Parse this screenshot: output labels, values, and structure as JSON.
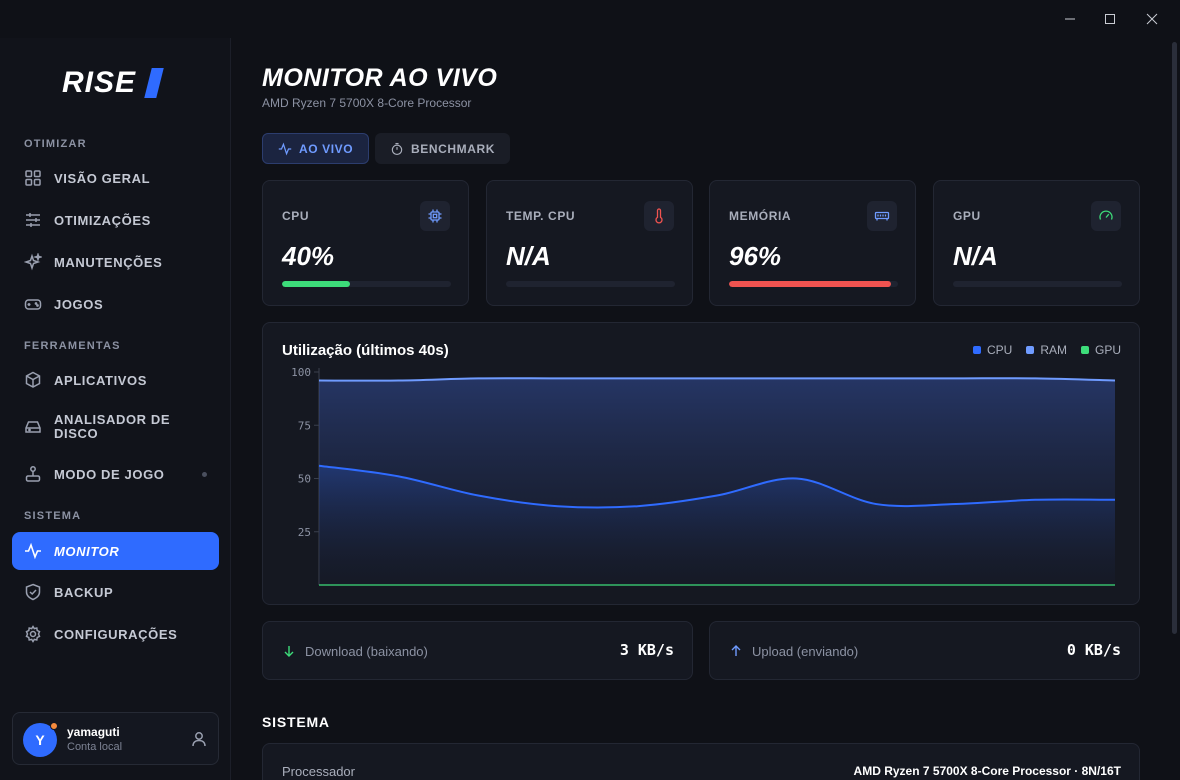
{
  "window": {
    "minimize": "minimize",
    "maximize": "maximize",
    "close": "close"
  },
  "brand": {
    "name": "RISE"
  },
  "sidebar": {
    "sections": [
      {
        "label": "OTIMIZAR"
      },
      {
        "label": "FERRAMENTAS"
      },
      {
        "label": "SISTEMA"
      }
    ],
    "items": [
      {
        "label": "VISÃO GERAL",
        "icon": "grid-icon"
      },
      {
        "label": "OTIMIZAÇÕES",
        "icon": "sliders-icon"
      },
      {
        "label": "MANUTENÇÕES",
        "icon": "sparkles-icon"
      },
      {
        "label": "JOGOS",
        "icon": "gamepad-icon"
      },
      {
        "label": "APLICATIVOS",
        "icon": "package-icon"
      },
      {
        "label": "ANALISADOR DE DISCO",
        "icon": "hard-drive-icon"
      },
      {
        "label": "MODO DE JOGO",
        "icon": "joystick-icon"
      },
      {
        "label": "MONITOR",
        "icon": "activity-icon",
        "active": true
      },
      {
        "label": "BACKUP",
        "icon": "shield-icon"
      },
      {
        "label": "CONFIGURAÇÕES",
        "icon": "gear-icon"
      }
    ]
  },
  "user": {
    "initial": "Y",
    "name": "yamaguti",
    "subtitle": "Conta local"
  },
  "page": {
    "title": "MONITOR AO VIVO",
    "subtitle": "AMD Ryzen 7 5700X 8-Core Processor"
  },
  "tabs": [
    {
      "label": "AO VIVO",
      "active": true
    },
    {
      "label": "BENCHMARK",
      "active": false
    }
  ],
  "stats": [
    {
      "label": "CPU",
      "value": "40%",
      "fill": 0.4,
      "color": "#3ddc7a",
      "icon": "cpu-icon"
    },
    {
      "label": "TEMP. CPU",
      "value": "N/A",
      "fill": 0,
      "color": "#ef5350",
      "icon": "thermometer-icon"
    },
    {
      "label": "MEMÓRIA",
      "value": "96%",
      "fill": 0.96,
      "color": "#ef5350",
      "icon": "memory-icon"
    },
    {
      "label": "GPU",
      "value": "N/A",
      "fill": 0,
      "color": "#3ddc7a",
      "icon": "gauge-icon"
    }
  ],
  "chart": {
    "title": "Utilização (últimos 40s)",
    "legend": [
      {
        "name": "CPU",
        "color": "#2f6bff"
      },
      {
        "name": "RAM",
        "color": "#6f9bff"
      },
      {
        "name": "GPU",
        "color": "#3ddc7a"
      }
    ]
  },
  "chart_data": {
    "type": "area",
    "title": "Utilização (últimos 40s)",
    "xlabel": "",
    "ylabel": "",
    "ylim": [
      0,
      100
    ],
    "yticks": [
      25,
      50,
      75,
      100
    ],
    "grid": false,
    "legend_position": "top-right",
    "x": [
      0,
      1,
      2,
      3,
      4,
      5,
      6,
      7,
      8,
      9,
      10
    ],
    "series": [
      {
        "name": "CPU",
        "color": "#2f6bff",
        "values": [
          56,
          51,
          42,
          37,
          37,
          42,
          50,
          38,
          38,
          40,
          40
        ]
      },
      {
        "name": "RAM",
        "color": "#6f9bff",
        "values": [
          96,
          96,
          97,
          97,
          97,
          97,
          97,
          97,
          97,
          97,
          96
        ]
      },
      {
        "name": "GPU",
        "color": "#3ddc7a",
        "values": [
          0,
          0,
          0,
          0,
          0,
          0,
          0,
          0,
          0,
          0,
          0
        ]
      }
    ]
  },
  "network": [
    {
      "label": "Download (baixando)",
      "value": "3 KB/s",
      "icon": "arrow-down-icon",
      "color": "#3ddc7a"
    },
    {
      "label": "Upload (enviando)",
      "value": "0 KB/s",
      "icon": "arrow-up-icon",
      "color": "#6f9bff"
    }
  ],
  "system": {
    "heading": "SISTEMA",
    "rows": [
      {
        "key": "Processador",
        "value": "AMD Ryzen 7 5700X 8-Core Processor · 8N/16T"
      }
    ]
  }
}
